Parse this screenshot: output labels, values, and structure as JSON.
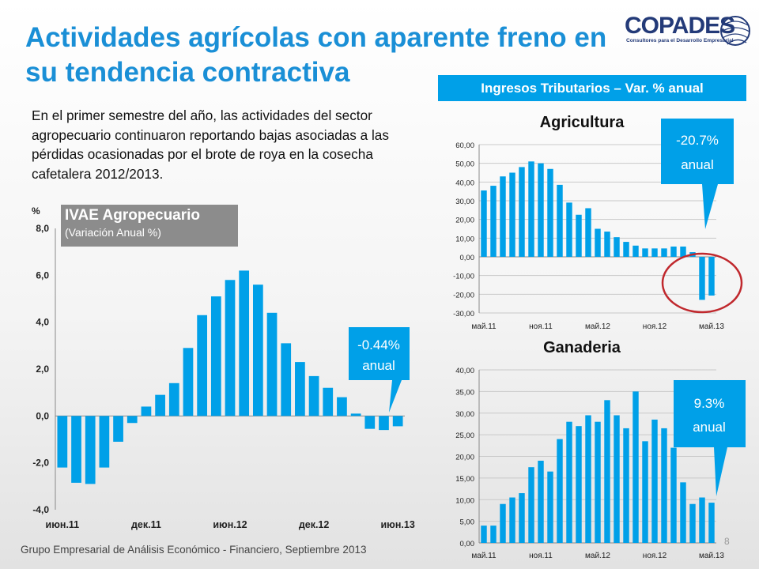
{
  "slide": {
    "title": "Actividades agrícolas con aparente freno en su tendencia contractiva",
    "body": "En el primer semestre del año, las actividades del sector agropecuario continuaron reportando bajas asociadas a las pérdidas ocasionadas por el brote de roya en la cosecha cafetalera 2012/2013.",
    "banner": "Ingresos Tributarios – Var. % anual",
    "footer": "Grupo Empresarial de Análisis Económico - Financiero, Septiembre 2013",
    "page_number": "8",
    "logo": {
      "name": "COPADES",
      "tagline": "Consultores para el Desarrollo Empresarial"
    },
    "ivae_box": {
      "title": "IVAE Agropecuario",
      "subtitle": "(Variación Anual %)"
    },
    "callouts": {
      "ivae": {
        "value": "-0.44%",
        "label": "anual"
      },
      "agricultura": {
        "value": "-20.7%",
        "label": "anual"
      },
      "ganaderia": {
        "value": "9.3%",
        "label": "anual"
      }
    },
    "colors": {
      "title": "#1a8fd6",
      "bar": "#00a0e8",
      "banner": "#00a0e8",
      "ivae_box": "#8c8c8c",
      "circle": "#c0282d"
    }
  },
  "chart_data": [
    {
      "id": "ivae",
      "type": "bar",
      "ylabel": "%",
      "ylim": [
        -4,
        8
      ],
      "yticks": [
        "-4,0",
        "-2,0",
        "0,0",
        "2,0",
        "4,0",
        "6,0",
        "8,0"
      ],
      "xticks": [
        "июн.11",
        "дек.11",
        "июн.12",
        "дек.12",
        "июн.13"
      ],
      "values": [
        -2.2,
        -2.85,
        -2.9,
        -2.2,
        -1.1,
        -0.3,
        0.4,
        0.9,
        1.4,
        2.9,
        4.3,
        5.1,
        5.8,
        6.2,
        5.6,
        4.4,
        3.1,
        2.3,
        1.7,
        1.2,
        0.8,
        0.1,
        -0.55,
        -0.6,
        -0.44
      ],
      "grid": false
    },
    {
      "id": "agricultura",
      "type": "bar",
      "title": "Agricultura",
      "ylim": [
        -30,
        60
      ],
      "yticks": [
        "-30,00",
        "-20,00",
        "-10,00",
        "0,00",
        "10,00",
        "20,00",
        "30,00",
        "40,00",
        "50,00",
        "60,00"
      ],
      "xticks": [
        "май.11",
        "ноя.11",
        "май.12",
        "ноя.12",
        "май.13"
      ],
      "values": [
        35.5,
        38,
        43,
        45,
        48,
        51,
        50,
        47,
        38.5,
        29,
        22.5,
        26,
        15,
        13.5,
        10.5,
        8,
        6,
        4.5,
        4.5,
        4.5,
        5.5,
        5.5,
        2.5,
        -23,
        -20.7
      ],
      "grid": true
    },
    {
      "id": "ganaderia",
      "type": "bar",
      "title": "Ganaderia",
      "ylim": [
        0,
        40
      ],
      "yticks": [
        "0,00",
        "5,00",
        "10,00",
        "15,00",
        "20,00",
        "25,00",
        "30,00",
        "35,00",
        "40,00"
      ],
      "xticks": [
        "май.11",
        "ноя.11",
        "май.12",
        "ноя.12",
        "май.13"
      ],
      "values": [
        4,
        4,
        9,
        10.5,
        11.5,
        17.5,
        19,
        16.5,
        24,
        28,
        27,
        29.5,
        28,
        33,
        29.5,
        26.5,
        35,
        23.5,
        28.5,
        26.5,
        22,
        14,
        9,
        10.5,
        9.3
      ],
      "grid": true
    }
  ]
}
